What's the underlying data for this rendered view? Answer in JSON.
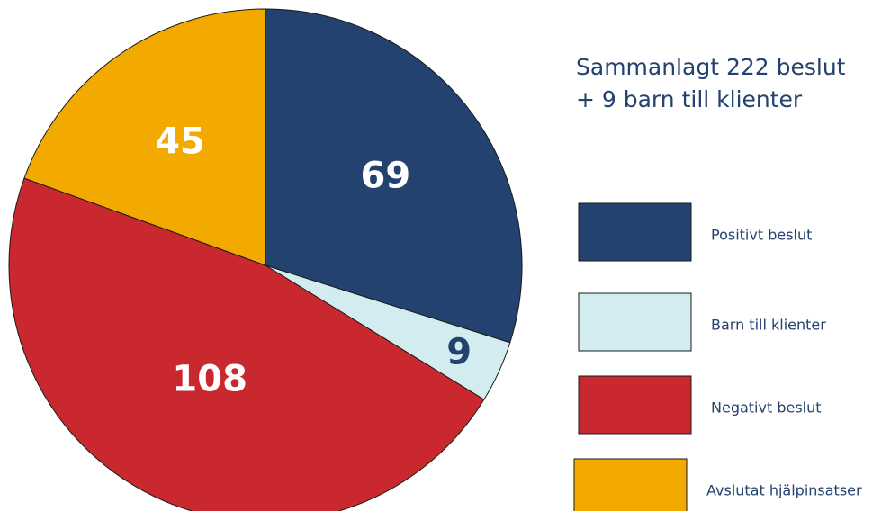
{
  "chart_data": {
    "type": "pie",
    "title_lines": [
      "Sammanlagt 222 beslut",
      "+ 9 barn till klienter"
    ],
    "categories": [
      "Positivt beslut",
      "Barn till klienter",
      "Negativt beslut",
      "Avslutat hjälpinsatser"
    ],
    "values": [
      69,
      9,
      108,
      45
    ],
    "colors": [
      "#24426f",
      "#d2ecf0",
      "#c9292e",
      "#f2a900"
    ],
    "legend": "right"
  }
}
